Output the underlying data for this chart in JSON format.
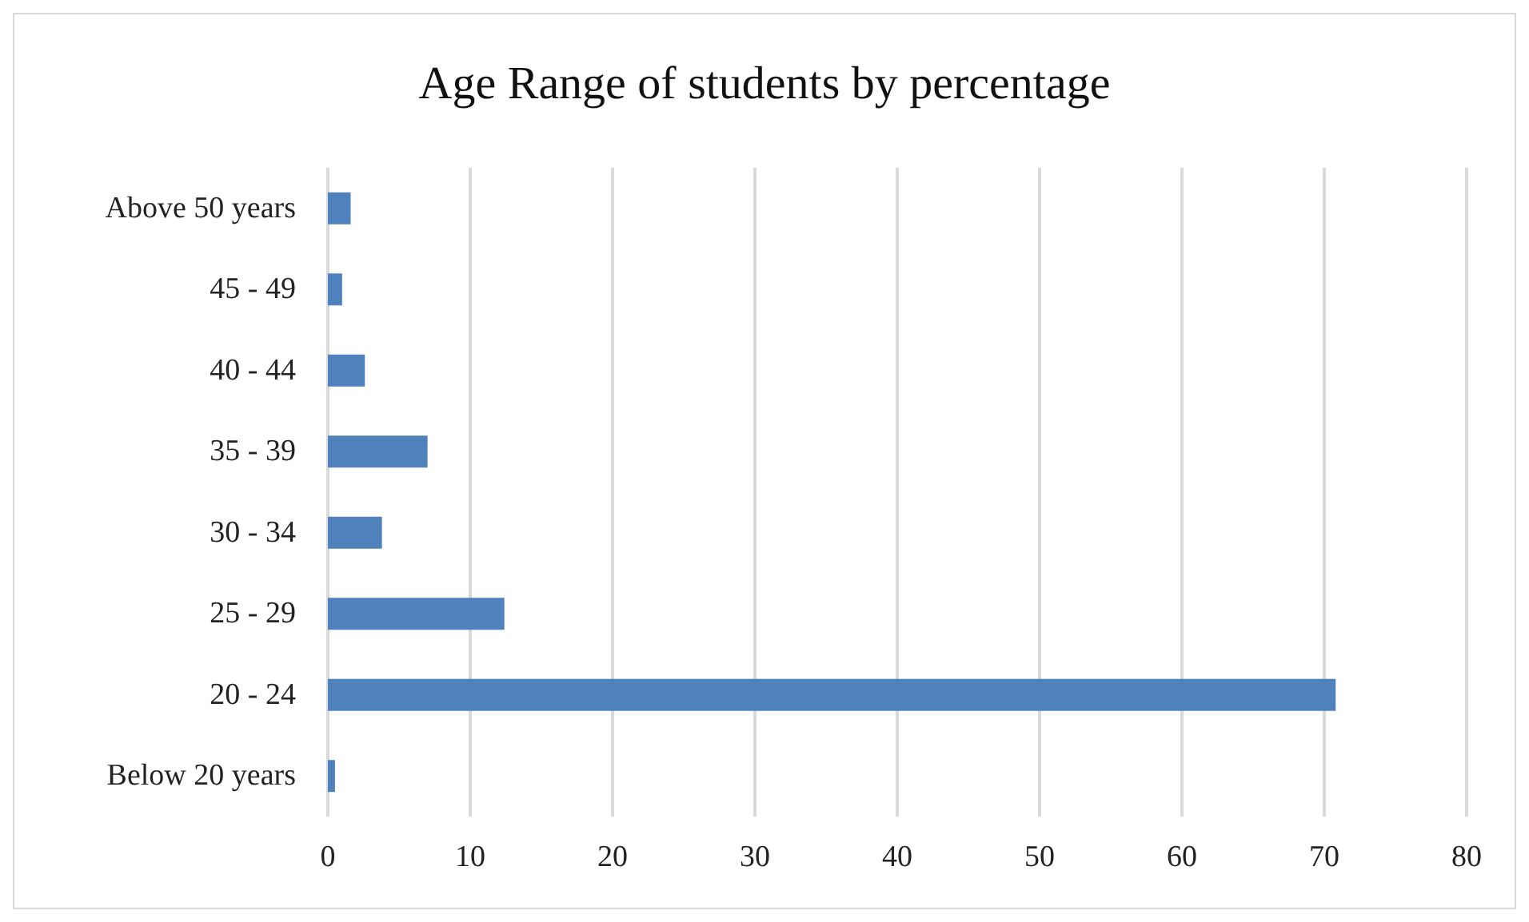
{
  "chart_data": {
    "type": "bar",
    "orientation": "horizontal",
    "title": "Age Range of students by percentage",
    "categories": [
      "Above 50 years",
      "45 - 49",
      "40 - 44",
      "35 - 39",
      "30 - 34",
      "25 - 29",
      "20 - 24",
      "Below 20 years"
    ],
    "values": [
      1.6,
      1.0,
      2.6,
      7.0,
      3.8,
      12.4,
      70.8,
      0.5
    ],
    "color": "#4f81bd",
    "xlim": [
      0,
      80
    ],
    "xticks": [
      0,
      10,
      20,
      30,
      40,
      50,
      60,
      70,
      80
    ],
    "grid": "x"
  }
}
